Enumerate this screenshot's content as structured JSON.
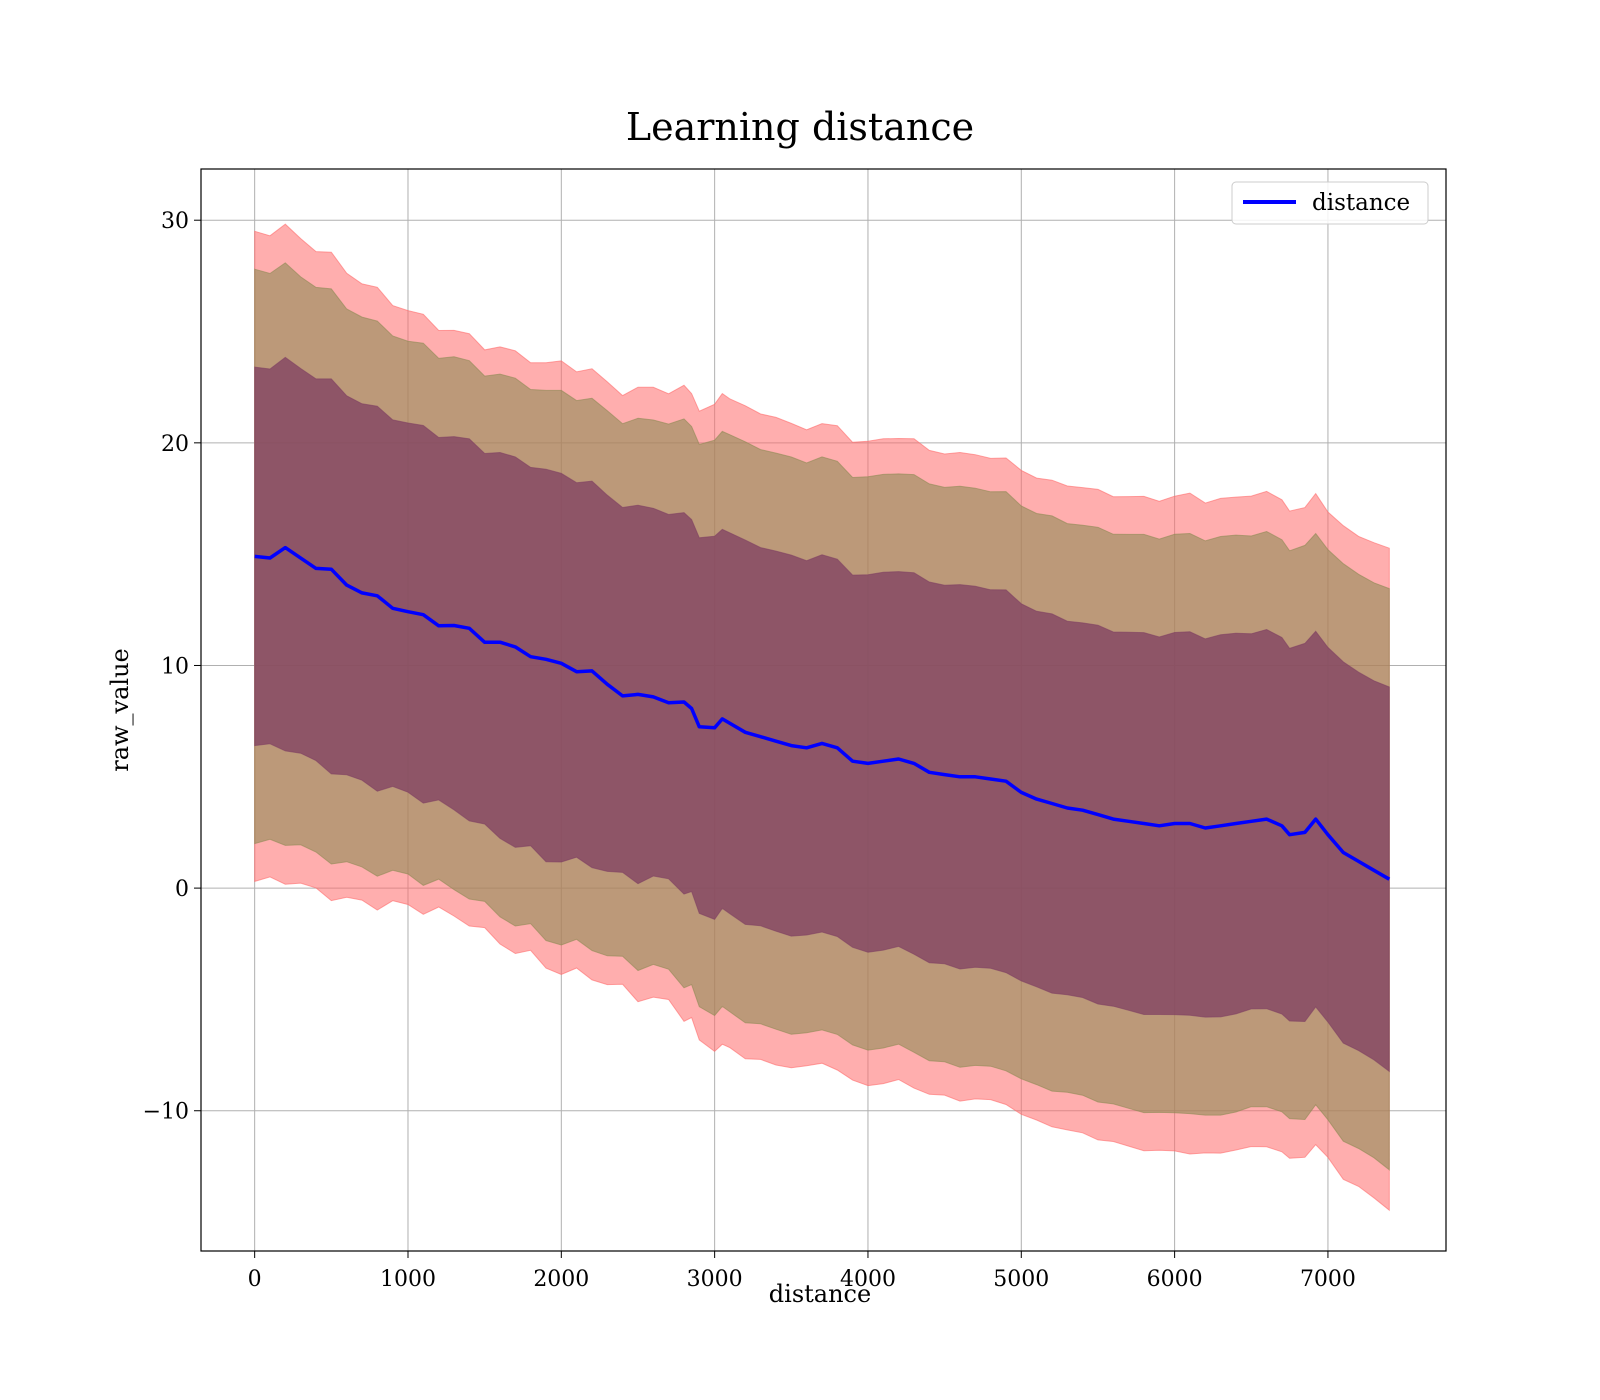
{
  "chart_data": {
    "type": "line",
    "title": "Learning distance",
    "xlabel": "distance",
    "ylabel": "raw_value",
    "xlim": [
      -350,
      7770
    ],
    "ylim": [
      -16.3,
      32.3
    ],
    "xticks": [
      0,
      1000,
      2000,
      3000,
      4000,
      5000,
      6000,
      7000
    ],
    "yticks": [
      -10,
      0,
      10,
      20,
      30
    ],
    "grid": true,
    "legend": {
      "position": "top-right",
      "entries": [
        "distance"
      ]
    },
    "colors": {
      "line": "#0000ff",
      "band_outer": "#ff6b6b",
      "band_middle": "#8f8a55",
      "band_inner": "#7f3f62",
      "grid": "#b0b0b0"
    },
    "series": [
      {
        "name": "distance",
        "x": [
          0,
          100,
          200,
          300,
          400,
          500,
          600,
          700,
          800,
          900,
          1000,
          1100,
          1200,
          1300,
          1400,
          1500,
          1600,
          1700,
          1800,
          1900,
          2000,
          2100,
          2200,
          2300,
          2400,
          2500,
          2600,
          2700,
          2800,
          2850,
          2900,
          3000,
          3050,
          3100,
          3200,
          3300,
          3400,
          3500,
          3600,
          3700,
          3800,
          3900,
          4000,
          4100,
          4200,
          4300,
          4400,
          4500,
          4600,
          4700,
          4800,
          4900,
          5000,
          5100,
          5200,
          5300,
          5400,
          5500,
          5600,
          5700,
          5800,
          5900,
          6000,
          6100,
          6200,
          6300,
          6400,
          6500,
          6600,
          6700,
          6750,
          6850,
          6920,
          7000,
          7100,
          7200,
          7300,
          7400
        ],
        "y": [
          14.9,
          14.9,
          15.0,
          14.7,
          14.3,
          14.0,
          13.6,
          13.3,
          13.0,
          12.8,
          12.6,
          12.3,
          12.1,
          11.9,
          11.6,
          11.2,
          10.9,
          10.6,
          10.4,
          10.0,
          9.9,
          9.8,
          9.6,
          9.2,
          8.9,
          8.7,
          8.8,
          8.6,
          8.3,
          8.2,
          7.3,
          7.2,
          7.6,
          7.4,
          7.0,
          6.8,
          6.6,
          6.4,
          6.3,
          6.5,
          6.3,
          5.7,
          5.6,
          5.7,
          5.8,
          5.6,
          5.2,
          5.1,
          5.0,
          5.0,
          4.9,
          4.8,
          4.3,
          4.0,
          3.8,
          3.6,
          3.5,
          3.3,
          3.1,
          3.0,
          2.9,
          2.8,
          2.9,
          2.9,
          2.7,
          2.8,
          2.9,
          3.0,
          3.1,
          2.8,
          2.4,
          2.5,
          3.1,
          2.4,
          1.6,
          1.2,
          0.8,
          0.4
        ]
      }
    ],
    "bands": {
      "x": [
        0,
        100,
        200,
        300,
        400,
        500,
        600,
        700,
        800,
        900,
        1000,
        1100,
        1200,
        1300,
        1400,
        1500,
        1600,
        1700,
        1800,
        1900,
        2000,
        2100,
        2200,
        2300,
        2400,
        2500,
        2600,
        2700,
        2800,
        2850,
        2900,
        3000,
        3050,
        3100,
        3200,
        3300,
        3400,
        3500,
        3600,
        3700,
        3800,
        3900,
        4000,
        4100,
        4200,
        4300,
        4400,
        4500,
        4600,
        4700,
        4800,
        4900,
        5000,
        5100,
        5200,
        5300,
        5400,
        5500,
        5600,
        5700,
        5800,
        5900,
        6000,
        6100,
        6200,
        6300,
        6400,
        6500,
        6600,
        6700,
        6750,
        6850,
        6920,
        7000,
        7100,
        7200,
        7300,
        7400
      ],
      "outer_halfwidth": [
        14.6,
        14.5,
        14.4,
        14.3,
        14.2,
        14.1,
        14.0,
        13.9,
        13.8,
        13.7,
        13.6,
        13.5,
        13.4,
        13.3,
        13.2,
        13.2,
        13.2,
        13.2,
        13.2,
        13.2,
        13.5,
        13.5,
        13.5,
        13.6,
        13.6,
        13.8,
        14.0,
        14.0,
        14.2,
        14.2,
        14.2,
        14.4,
        14.6,
        14.5,
        14.5,
        14.5,
        14.5,
        14.4,
        14.4,
        14.4,
        14.5,
        14.5,
        14.5,
        14.5,
        14.5,
        14.5,
        14.4,
        14.4,
        14.4,
        14.4,
        14.4,
        14.4,
        14.5,
        14.5,
        14.5,
        14.6,
        14.6,
        14.6,
        14.6,
        14.6,
        14.6,
        14.6,
        14.6,
        14.7,
        14.6,
        14.6,
        14.6,
        14.7,
        14.7,
        14.7,
        14.7,
        14.6,
        14.7,
        14.6,
        14.6,
        14.6,
        14.7,
        14.7
      ],
      "middle_halfwidth": [
        12.9,
        12.8,
        12.7,
        12.6,
        12.6,
        12.5,
        12.4,
        12.4,
        12.3,
        12.3,
        12.2,
        12.2,
        12.1,
        12.1,
        12.0,
        12.0,
        12.0,
        12.0,
        12.0,
        12.0,
        12.2,
        12.2,
        12.2,
        12.3,
        12.3,
        12.4,
        12.5,
        12.6,
        12.7,
        12.7,
        12.7,
        12.8,
        12.9,
        12.9,
        12.9,
        12.9,
        12.9,
        12.9,
        12.9,
        12.9,
        12.9,
        12.9,
        12.9,
        12.9,
        12.9,
        12.9,
        12.9,
        12.9,
        12.9,
        12.9,
        12.9,
        12.9,
        12.9,
        12.9,
        12.9,
        12.9,
        12.9,
        12.9,
        12.9,
        12.9,
        12.9,
        12.9,
        12.9,
        12.9,
        12.9,
        12.9,
        12.9,
        12.9,
        12.9,
        12.9,
        12.9,
        12.9,
        12.9,
        12.9,
        12.9,
        12.9,
        12.9,
        12.9
      ],
      "inner_halfwidth": [
        8.5,
        8.5,
        8.5,
        8.5,
        8.5,
        8.5,
        8.5,
        8.5,
        8.5,
        8.5,
        8.5,
        8.5,
        8.5,
        8.5,
        8.5,
        8.5,
        8.5,
        8.5,
        8.5,
        8.5,
        8.5,
        8.5,
        8.5,
        8.5,
        8.5,
        8.5,
        8.5,
        8.5,
        8.5,
        8.5,
        8.5,
        8.5,
        8.5,
        8.5,
        8.5,
        8.5,
        8.5,
        8.5,
        8.5,
        8.5,
        8.5,
        8.5,
        8.5,
        8.5,
        8.5,
        8.5,
        8.5,
        8.5,
        8.5,
        8.5,
        8.5,
        8.5,
        8.5,
        8.5,
        8.5,
        8.5,
        8.5,
        8.5,
        8.5,
        8.5,
        8.5,
        8.5,
        8.5,
        8.5,
        8.5,
        8.5,
        8.5,
        8.5,
        8.5,
        8.5,
        8.5,
        8.5,
        8.5,
        8.5,
        8.5,
        8.5,
        8.5,
        8.5
      ]
    }
  }
}
